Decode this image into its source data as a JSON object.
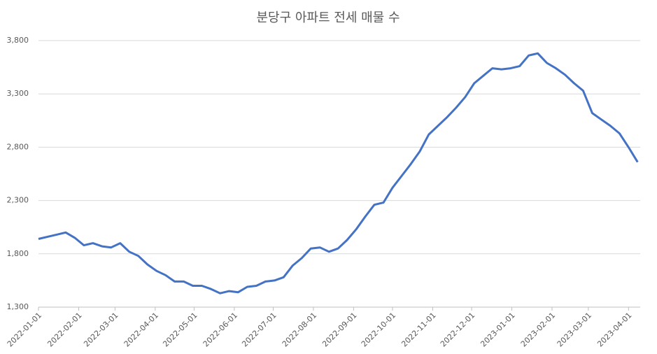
{
  "chart_data": {
    "type": "line",
    "title": "분당구 아파트 전세 매물 수",
    "x": [
      "2022-01-01",
      "2022-01-08",
      "2022-01-15",
      "2022-01-22",
      "2022-01-29",
      "2022-02-05",
      "2022-02-12",
      "2022-02-19",
      "2022-02-26",
      "2022-03-05",
      "2022-03-12",
      "2022-03-19",
      "2022-03-26",
      "2022-04-02",
      "2022-04-09",
      "2022-04-16",
      "2022-04-23",
      "2022-04-30",
      "2022-05-07",
      "2022-05-14",
      "2022-05-21",
      "2022-05-28",
      "2022-06-04",
      "2022-06-11",
      "2022-06-18",
      "2022-06-25",
      "2022-07-02",
      "2022-07-09",
      "2022-07-16",
      "2022-07-23",
      "2022-07-30",
      "2022-08-06",
      "2022-08-13",
      "2022-08-20",
      "2022-08-27",
      "2022-09-03",
      "2022-09-10",
      "2022-09-17",
      "2022-09-24",
      "2022-10-01",
      "2022-10-08",
      "2022-10-15",
      "2022-10-22",
      "2022-10-29",
      "2022-11-05",
      "2022-11-12",
      "2022-11-19",
      "2022-11-26",
      "2022-12-03",
      "2022-12-10",
      "2022-12-17",
      "2022-12-24",
      "2022-12-31",
      "2023-01-07",
      "2023-01-14",
      "2023-01-21",
      "2023-01-28",
      "2023-02-04",
      "2023-02-11",
      "2023-02-18",
      "2023-02-25",
      "2023-03-04",
      "2023-03-11",
      "2023-03-18",
      "2023-03-25",
      "2023-04-01",
      "2023-04-08"
    ],
    "series": [
      {
        "name": "매물 수",
        "color": "#4472c4",
        "values": [
          1940,
          1960,
          1980,
          2000,
          1950,
          1880,
          1900,
          1870,
          1860,
          1900,
          1820,
          1780,
          1700,
          1640,
          1600,
          1540,
          1540,
          1500,
          1500,
          1470,
          1430,
          1450,
          1440,
          1490,
          1500,
          1540,
          1550,
          1580,
          1690,
          1760,
          1850,
          1860,
          1820,
          1850,
          1930,
          2030,
          2150,
          2260,
          2280,
          2420,
          2530,
          2640,
          2760,
          2920,
          3000,
          3080,
          3170,
          3270,
          3400,
          3470,
          3540,
          3530,
          3540,
          3560,
          3660,
          3680,
          3590,
          3540,
          3480,
          3400,
          3330,
          3120,
          3060,
          3000,
          2930,
          2800,
          2660
        ]
      }
    ],
    "xlim": [
      "2022-01-01",
      "2023-04-10"
    ],
    "xticks": [
      "2022-01-01",
      "2022-02-01",
      "2022-03-01",
      "2022-04-01",
      "2022-05-01",
      "2022-06-01",
      "2022-07-01",
      "2022-08-01",
      "2022-09-01",
      "2022-10-01",
      "2022-11-01",
      "2022-12-01",
      "2023-01-01",
      "2023-02-01",
      "2023-03-01",
      "2023-04-01"
    ],
    "ylim": [
      1300,
      3800
    ],
    "yticks": [
      {
        "value": 1300,
        "label": "1,300"
      },
      {
        "value": 1800,
        "label": "1,800"
      },
      {
        "value": 2300,
        "label": "2,300"
      },
      {
        "value": 2800,
        "label": "2,800"
      },
      {
        "value": 3300,
        "label": "3,300"
      },
      {
        "value": 3800,
        "label": "3,800"
      }
    ],
    "grid": true
  }
}
